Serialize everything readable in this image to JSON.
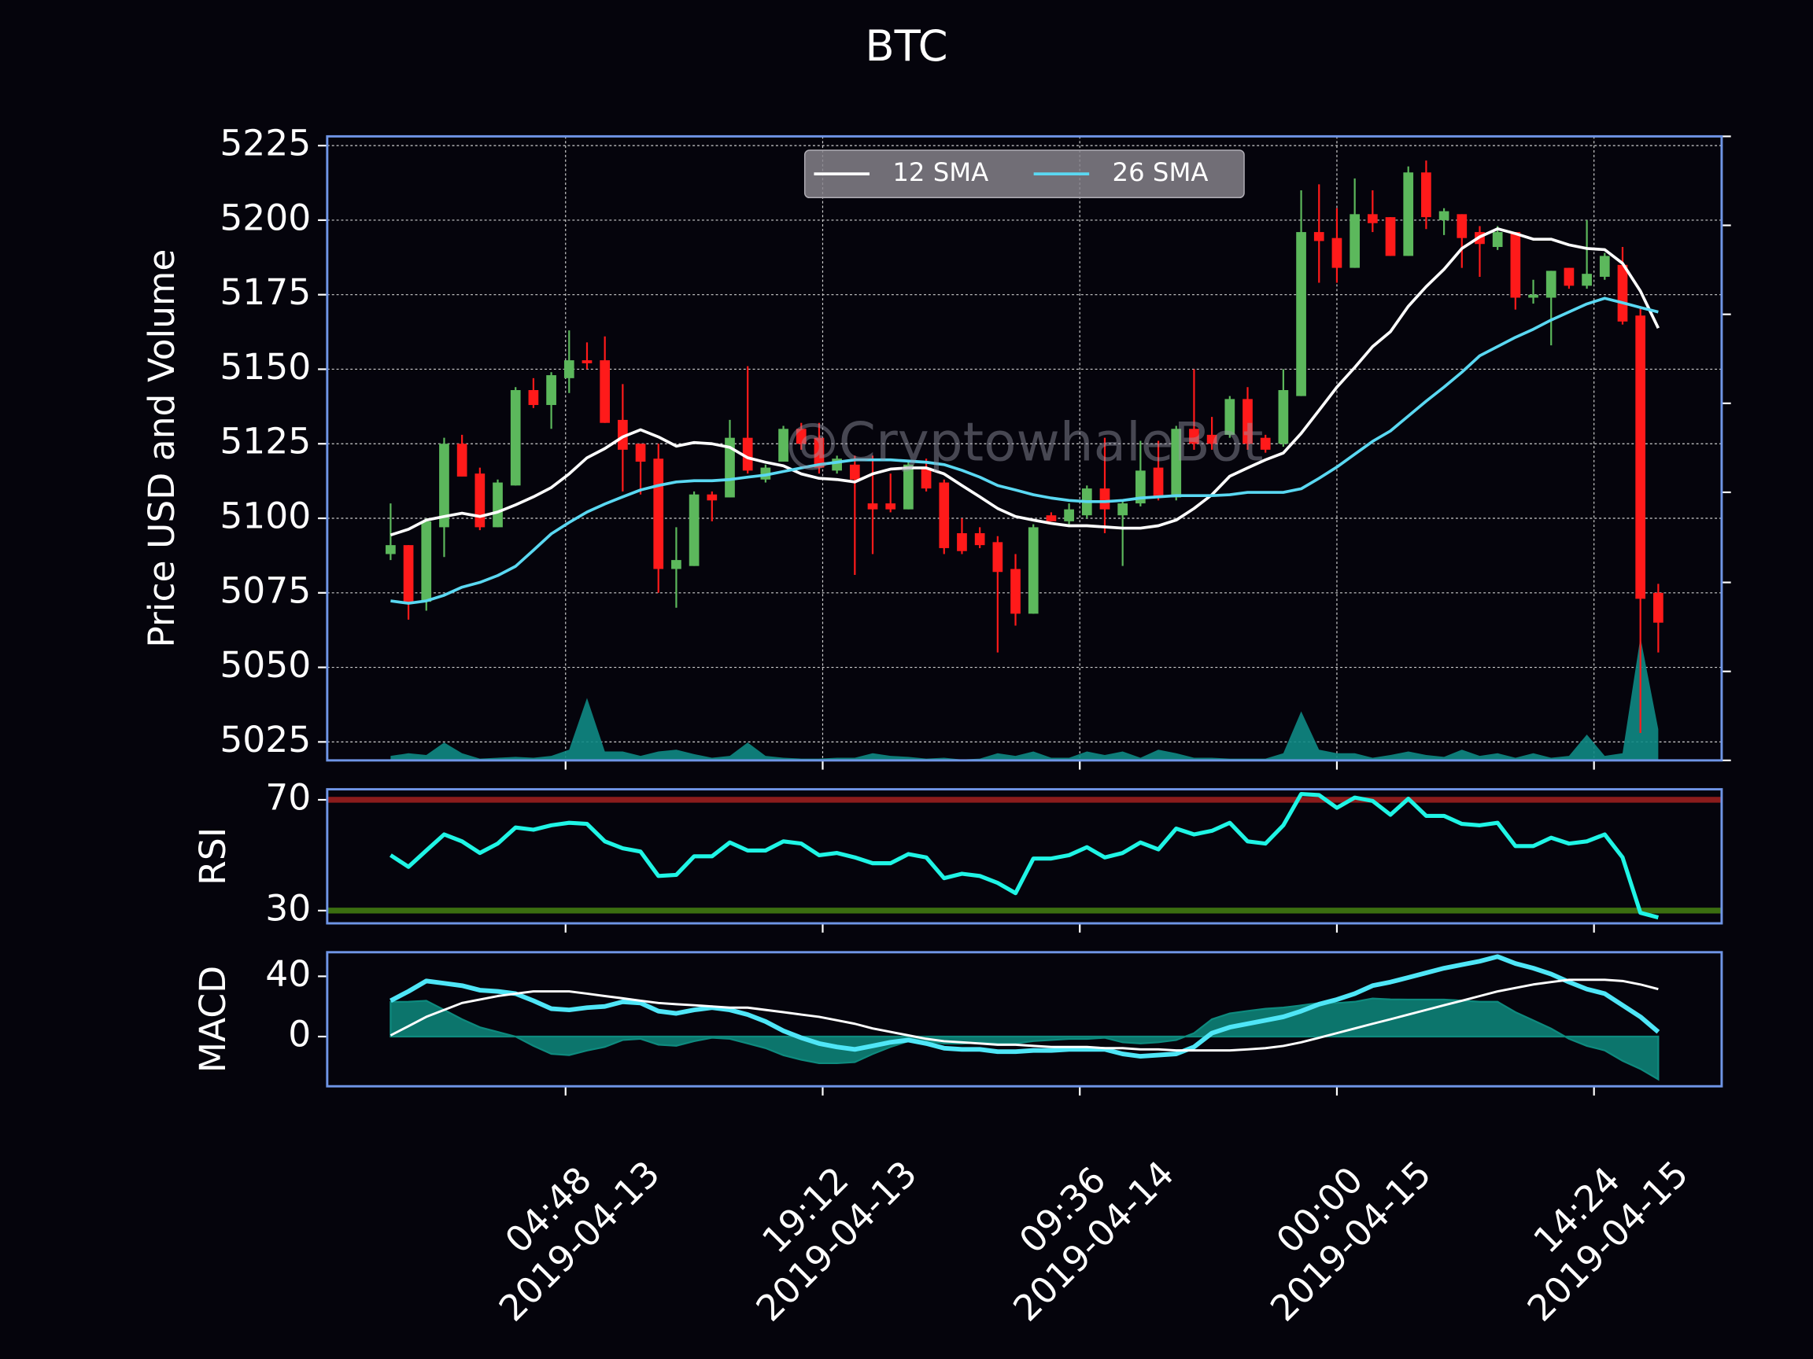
{
  "chart_data": [
    {
      "type": "candlestick",
      "title": "BTC",
      "ylabel": "Price USD and Volume",
      "watermark": "@CryptowhaleBot",
      "x": [
        "2019-04-12 19:00",
        "2019-04-12 20:00",
        "2019-04-12 21:00",
        "2019-04-12 22:00",
        "2019-04-12 23:00",
        "2019-04-13 00:00",
        "2019-04-13 01:00",
        "2019-04-13 02:00",
        "2019-04-13 03:00",
        "2019-04-13 04:00",
        "2019-04-13 05:00",
        "2019-04-13 06:00",
        "2019-04-13 07:00",
        "2019-04-13 08:00",
        "2019-04-13 09:00",
        "2019-04-13 10:00",
        "2019-04-13 11:00",
        "2019-04-13 12:00",
        "2019-04-13 13:00",
        "2019-04-13 14:00",
        "2019-04-13 15:00",
        "2019-04-13 16:00",
        "2019-04-13 17:00",
        "2019-04-13 18:00",
        "2019-04-13 19:00",
        "2019-04-13 20:00",
        "2019-04-13 21:00",
        "2019-04-13 22:00",
        "2019-04-13 23:00",
        "2019-04-14 00:00",
        "2019-04-14 01:00",
        "2019-04-14 02:00",
        "2019-04-14 03:00",
        "2019-04-14 04:00",
        "2019-04-14 05:00",
        "2019-04-14 06:00",
        "2019-04-14 07:00",
        "2019-04-14 08:00",
        "2019-04-14 09:00",
        "2019-04-14 10:00",
        "2019-04-14 11:00",
        "2019-04-14 12:00",
        "2019-04-14 13:00",
        "2019-04-14 14:00",
        "2019-04-14 15:00",
        "2019-04-14 16:00",
        "2019-04-14 17:00",
        "2019-04-14 18:00",
        "2019-04-14 19:00",
        "2019-04-14 20:00",
        "2019-04-14 21:00",
        "2019-04-14 22:00",
        "2019-04-14 23:00",
        "2019-04-15 00:00",
        "2019-04-15 01:00",
        "2019-04-15 02:00",
        "2019-04-15 03:00",
        "2019-04-15 04:00",
        "2019-04-15 05:00",
        "2019-04-15 06:00",
        "2019-04-15 07:00",
        "2019-04-15 08:00",
        "2019-04-15 09:00",
        "2019-04-15 10:00",
        "2019-04-15 11:00",
        "2019-04-15 12:00",
        "2019-04-15 13:00",
        "2019-04-15 14:00",
        "2019-04-15 15:00",
        "2019-04-15 16:00",
        "2019-04-15 17:00",
        "2019-04-15 18:00"
      ],
      "xlim": [
        "2019-04-12 15:27",
        "2019-04-15 21:33"
      ],
      "xticks": [
        {
          "value": "2019-04-13 04:48",
          "label": [
            "04:48",
            "2019-04-13"
          ]
        },
        {
          "value": "2019-04-13 19:12",
          "label": [
            "19:12",
            "2019-04-13"
          ]
        },
        {
          "value": "2019-04-14 09:36",
          "label": [
            "09:36",
            "2019-04-14"
          ]
        },
        {
          "value": "2019-04-15 00:00",
          "label": [
            "00:00",
            "2019-04-15"
          ]
        },
        {
          "value": "2019-04-15 14:24",
          "label": [
            "14:24",
            "2019-04-15"
          ]
        }
      ],
      "ylim": [
        5018.8,
        5228.1
      ],
      "yticks": [
        5025,
        5050,
        5075,
        5100,
        5125,
        5150,
        5175,
        5200,
        5225
      ],
      "grid": true,
      "up_color": "#5cb85c",
      "down_color": "#ff1a1a",
      "open": [
        5088,
        5091,
        5072,
        5097,
        5125,
        5115,
        5097,
        5111,
        5143,
        5138,
        5147,
        5153,
        5153,
        5133,
        5125,
        5120,
        5083,
        5084,
        5108,
        5107,
        5127,
        5113,
        5119,
        5130,
        5127,
        5116,
        5118,
        5105,
        5105,
        5103,
        5117,
        5112,
        5095,
        5095,
        5092,
        5083,
        5068,
        5101,
        5099,
        5101,
        5110,
        5101,
        5105,
        5117,
        5107,
        5130,
        5128,
        5128,
        5140,
        5127,
        5125,
        5141,
        5196,
        5194,
        5184,
        5202,
        5201,
        5188,
        5216,
        5200,
        5202,
        5196,
        5191,
        5196,
        5174,
        5174,
        5184,
        5178,
        5181,
        5185,
        5168,
        5075
      ],
      "high": [
        5105,
        5091,
        5100,
        5127,
        5128,
        5117,
        5113,
        5144,
        5147,
        5149,
        5163,
        5159,
        5161,
        5145,
        5125,
        5125,
        5097,
        5109,
        5109,
        5133,
        5151,
        5118,
        5131,
        5132,
        5132,
        5121,
        5121,
        5121,
        5115,
        5119,
        5120,
        5113,
        5100,
        5097,
        5094,
        5088,
        5098,
        5102,
        5105,
        5111,
        5127,
        5106,
        5126,
        5126,
        5131,
        5150,
        5134,
        5141,
        5144,
        5128,
        5150,
        5210,
        5212,
        5204,
        5214,
        5210,
        5201,
        5218,
        5220,
        5204,
        5202,
        5198,
        5198,
        5196,
        5180,
        5183,
        5184,
        5200,
        5189,
        5191,
        5171,
        5078
      ],
      "low": [
        5086,
        5066,
        5069,
        5087,
        5114,
        5096,
        5097,
        5111,
        5137,
        5130,
        5142,
        5150,
        5132,
        5109,
        5108,
        5075,
        5070,
        5084,
        5099,
        5107,
        5115,
        5112,
        5119,
        5123,
        5115,
        5115,
        5081,
        5088,
        5102,
        5103,
        5109,
        5088,
        5088,
        5090,
        5055,
        5064,
        5068,
        5099,
        5098,
        5100,
        5095,
        5084,
        5104,
        5106,
        5106,
        5123,
        5123,
        5127,
        5123,
        5122,
        5124,
        5141,
        5179,
        5179,
        5184,
        5196,
        5188,
        5188,
        5197,
        5195,
        5184,
        5181,
        5190,
        5170,
        5172,
        5158,
        5177,
        5177,
        5180,
        5165,
        5028,
        5055
      ],
      "close": [
        5091,
        5072,
        5099,
        5125,
        5114,
        5097,
        5112,
        5143,
        5138,
        5148,
        5153,
        5152,
        5132,
        5123,
        5119,
        5083,
        5086,
        5108,
        5106,
        5127,
        5116,
        5117,
        5130,
        5125,
        5117,
        5120,
        5113,
        5103,
        5103,
        5118,
        5110,
        5090,
        5089,
        5091,
        5082,
        5068,
        5097,
        5099,
        5103,
        5110,
        5103,
        5105,
        5116,
        5107,
        5130,
        5125,
        5125,
        5140,
        5125,
        5123,
        5143,
        5196,
        5193,
        5184,
        5202,
        5199,
        5188,
        5216,
        5201,
        5203,
        5194,
        5192,
        5196,
        5174,
        5175,
        5183,
        5178,
        5182,
        5188,
        5166,
        5073,
        5065
      ],
      "volume": {
        "color": "#0f8a84",
        "axis": "y2",
        "values": [
          0.05,
          0.08,
          0.06,
          0.2,
          0.08,
          0.02,
          0.03,
          0.04,
          0.03,
          0.05,
          0.12,
          0.7,
          0.1,
          0.1,
          0.05,
          0.1,
          0.12,
          0.07,
          0.03,
          0.05,
          0.2,
          0.05,
          0.03,
          0.02,
          0.02,
          0.03,
          0.03,
          0.08,
          0.05,
          0.04,
          0.02,
          0.03,
          0.01,
          0.02,
          0.08,
          0.05,
          0.1,
          0.03,
          0.03,
          0.1,
          0.06,
          0.1,
          0.03,
          0.12,
          0.08,
          0.03,
          0.03,
          0.02,
          0.02,
          0.02,
          0.08,
          0.55,
          0.12,
          0.08,
          0.08,
          0.03,
          0.06,
          0.1,
          0.06,
          0.04,
          0.12,
          0.05,
          0.08,
          0.03,
          0.08,
          0.03,
          0.05,
          0.29,
          0.05,
          0.08,
          1.38,
          0.35
        ]
      },
      "y2lim": [
        0,
        7
      ],
      "legend": "upper center",
      "series": [
        {
          "name": "12 SMA",
          "color": "#ffffff",
          "linewidth": 2.5,
          "values": [
            5094.4,
            5096.3,
            5099.4,
            5100.6,
            5101.7,
            5100.6,
            5102.1,
            5104.5,
            5107.2,
            5110.3,
            5114.9,
            5120.3,
            5123.4,
            5127.3,
            5129.7,
            5127.3,
            5124.2,
            5125.4,
            5125.0,
            5123.8,
            5120.3,
            5118.8,
            5117.6,
            5114.9,
            5113.4,
            5113.0,
            5112.2,
            5114.9,
            5116.5,
            5116.9,
            5116.9,
            5114.9,
            5111.0,
            5107.2,
            5103.3,
            5100.6,
            5099.4,
            5098.3,
            5097.5,
            5097.5,
            5097.1,
            5096.7,
            5096.7,
            5097.5,
            5099.4,
            5103.3,
            5107.9,
            5114.1,
            5116.9,
            5119.6,
            5121.9,
            5128.5,
            5136.2,
            5144.0,
            5150.6,
            5157.6,
            5162.6,
            5171.1,
            5177.7,
            5183.5,
            5190.5,
            5194.4,
            5197.1,
            5195.5,
            5193.6,
            5193.6,
            5191.7,
            5190.5,
            5190.1,
            5185.5,
            5176.2,
            5163.8
          ]
        },
        {
          "name": "26 SMA",
          "color": "#5ad8f2",
          "linewidth": 2.5,
          "values": [
            5072.3,
            5071.5,
            5072.3,
            5074.2,
            5076.9,
            5078.5,
            5080.8,
            5083.9,
            5089.3,
            5094.8,
            5098.6,
            5102.1,
            5104.8,
            5107.2,
            5109.5,
            5111.0,
            5112.2,
            5112.6,
            5112.6,
            5113.0,
            5113.8,
            5114.5,
            5115.7,
            5116.9,
            5118.0,
            5118.8,
            5119.6,
            5119.6,
            5119.6,
            5119.2,
            5118.8,
            5118.0,
            5116.1,
            5113.8,
            5111.0,
            5109.5,
            5107.9,
            5106.8,
            5106.0,
            5105.6,
            5105.6,
            5106.0,
            5106.8,
            5107.2,
            5107.6,
            5107.6,
            5107.6,
            5107.9,
            5108.7,
            5108.7,
            5108.7,
            5109.9,
            5113.4,
            5117.2,
            5121.5,
            5125.8,
            5129.3,
            5134.3,
            5139.3,
            5144.0,
            5149.0,
            5154.5,
            5157.6,
            5160.7,
            5163.4,
            5166.5,
            5169.2,
            5171.9,
            5173.8,
            5172.3,
            5170.7,
            5169.2
          ]
        }
      ]
    },
    {
      "type": "line",
      "ylabel": "RSI",
      "ylim": [
        25.4,
        73.8
      ],
      "yticks": [
        30,
        70
      ],
      "hlines": [
        {
          "value": 70,
          "color": "#8b1c1c"
        },
        {
          "value": 30,
          "color": "#3b6e10"
        }
      ],
      "series": [
        {
          "color": "#1ff5e5",
          "linewidth": 3.5,
          "values": [
            50.0,
            45.8,
            51.7,
            57.5,
            55.0,
            50.8,
            54.2,
            60.0,
            59.2,
            60.8,
            61.7,
            61.3,
            55.0,
            52.5,
            51.3,
            42.5,
            42.9,
            49.6,
            49.6,
            54.6,
            51.7,
            51.7,
            55.0,
            54.2,
            50.0,
            50.8,
            49.2,
            47.1,
            47.1,
            50.4,
            49.2,
            41.7,
            43.3,
            42.5,
            40.0,
            36.3,
            48.8,
            48.8,
            50.0,
            52.9,
            49.2,
            50.8,
            54.6,
            52.1,
            59.6,
            57.5,
            58.8,
            61.7,
            55.0,
            54.2,
            60.8,
            72.1,
            71.7,
            67.1,
            70.8,
            69.6,
            64.6,
            70.4,
            64.2,
            64.2,
            61.3,
            60.8,
            61.7,
            53.3,
            53.3,
            56.3,
            54.2,
            55.0,
            57.5,
            49.2,
            29.2,
            27.5
          ]
        }
      ]
    },
    {
      "type": "line",
      "ylabel": "MACD",
      "ylim": [
        -33,
        56
      ],
      "yticks": [
        0,
        40
      ],
      "histogram": {
        "color": "#0e8a7e",
        "values": [
          23.0,
          23.1,
          23.8,
          17.7,
          11.5,
          6.2,
          3.1,
          0,
          -6.2,
          -11.5,
          -12.3,
          -9.3,
          -6.9,
          -2.3,
          -1.5,
          -5.4,
          -6.1,
          -3.1,
          -0.8,
          -1.5,
          -4.6,
          -7.7,
          -12.4,
          -15.4,
          -17.7,
          -17.7,
          -17.0,
          -11.6,
          -6.9,
          -3.1,
          -3.1,
          -4.6,
          -4.7,
          -3.9,
          -4.6,
          -4.6,
          -3.0,
          -2.3,
          -1.6,
          -1.6,
          -0.8,
          -3.8,
          -4.6,
          -3.8,
          -2.3,
          2.3,
          11.5,
          15.4,
          17.0,
          18.5,
          19.3,
          20.7,
          22.3,
          22.3,
          23.1,
          25.3,
          24.7,
          24.6,
          24.6,
          24.6,
          23.9,
          23.1,
          23.1,
          16.2,
          10.8,
          5.3,
          -1.5,
          -6.2,
          -9.2,
          -16.1,
          -21.5,
          -28.4
        ]
      },
      "series": [
        {
          "color": "#4fe6f7",
          "linewidth": 4,
          "values": [
            23.8,
            30.0,
            36.9,
            35.4,
            33.8,
            30.8,
            30.0,
            28.5,
            23.8,
            18.5,
            17.7,
            19.2,
            20.0,
            23.1,
            22.3,
            16.9,
            15.4,
            17.7,
            19.2,
            17.7,
            14.6,
            10.0,
            3.8,
            -0.8,
            -4.6,
            -6.9,
            -8.5,
            -6.2,
            -3.8,
            -2.3,
            -4.6,
            -7.7,
            -8.5,
            -8.5,
            -10.0,
            -10.0,
            -9.2,
            -9.2,
            -8.5,
            -8.5,
            -8.5,
            -11.5,
            -13.1,
            -12.3,
            -11.5,
            -6.9,
            2.3,
            6.2,
            8.5,
            10.8,
            13.1,
            16.9,
            21.5,
            24.6,
            28.5,
            33.8,
            36.2,
            39.2,
            42.3,
            45.4,
            47.7,
            50.0,
            53.1,
            48.5,
            45.4,
            41.5,
            36.2,
            31.5,
            28.5,
            20.8,
            13.1,
            3.1
          ]
        },
        {
          "color": "#ffffff",
          "linewidth": 2,
          "values": [
            0.8,
            6.9,
            13.1,
            17.7,
            22.3,
            24.6,
            26.9,
            28.5,
            30.0,
            30.0,
            30.0,
            28.5,
            26.9,
            25.4,
            23.8,
            22.3,
            21.5,
            20.8,
            20.0,
            19.2,
            19.2,
            17.7,
            16.2,
            14.6,
            13.1,
            10.8,
            8.5,
            5.4,
            3.1,
            0.8,
            -1.5,
            -3.1,
            -3.8,
            -4.6,
            -5.4,
            -5.4,
            -6.2,
            -6.9,
            -6.9,
            -6.9,
            -7.7,
            -7.7,
            -8.5,
            -8.5,
            -9.2,
            -9.2,
            -9.2,
            -9.2,
            -8.5,
            -7.7,
            -6.2,
            -3.8,
            -0.8,
            2.3,
            5.4,
            8.5,
            11.5,
            14.6,
            17.7,
            20.8,
            23.8,
            26.9,
            30.0,
            32.3,
            34.6,
            36.2,
            37.7,
            37.7,
            37.7,
            36.9,
            34.6,
            31.5
          ]
        }
      ]
    }
  ]
}
